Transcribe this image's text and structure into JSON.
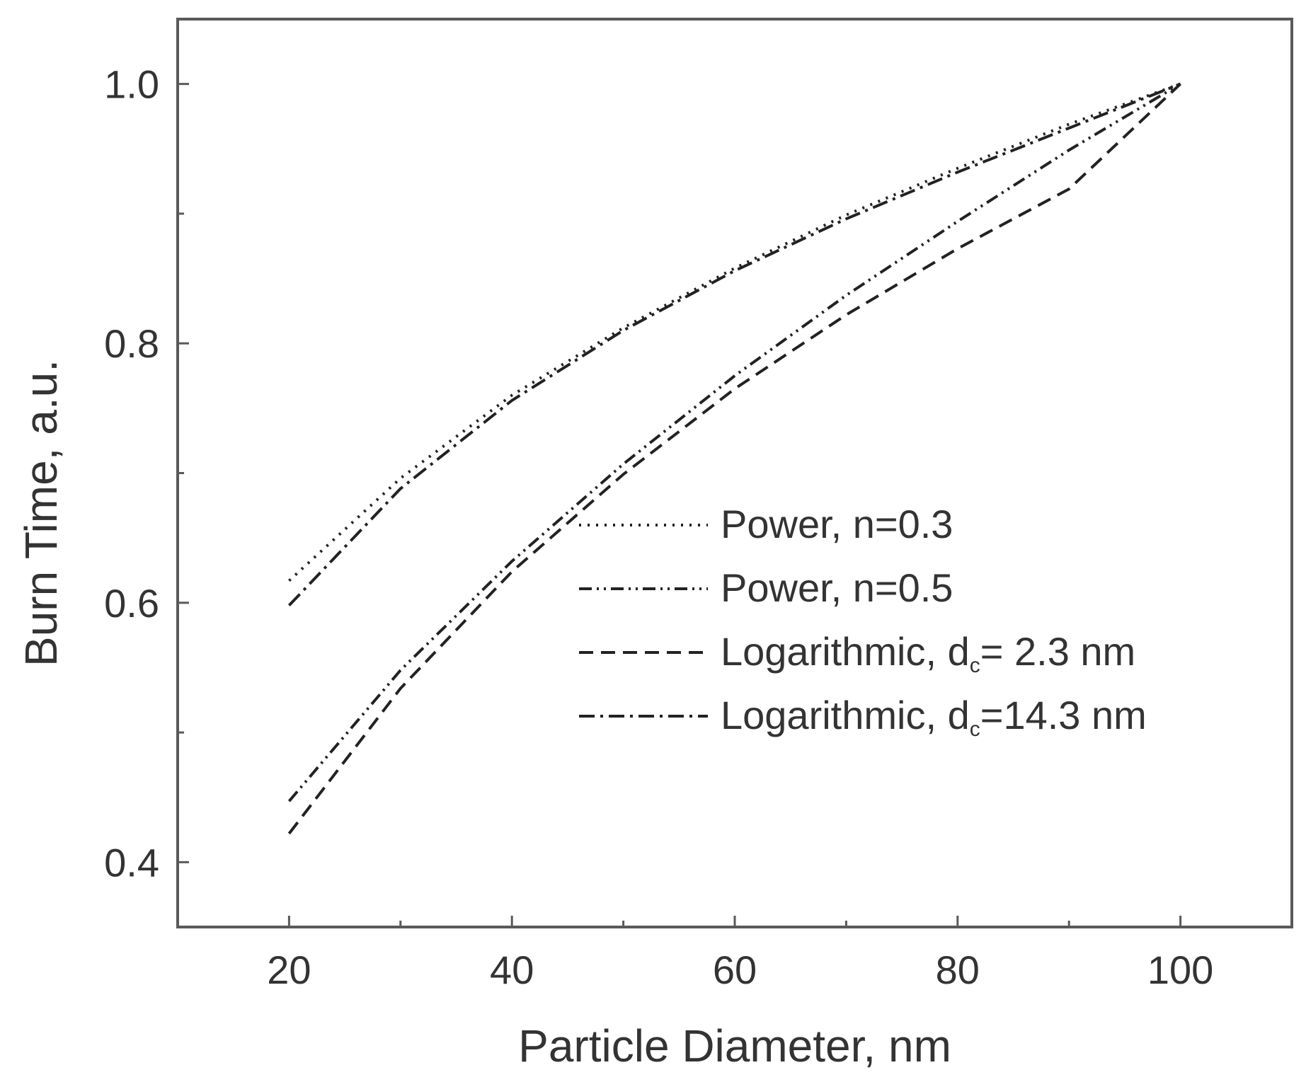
{
  "chart_data": {
    "type": "line",
    "title": "",
    "xlabel": "Particle Diameter, nm",
    "ylabel": "Burn Time, a.u.",
    "xlim": [
      10,
      110
    ],
    "ylim": [
      0.35,
      1.05
    ],
    "xticks": [
      20,
      40,
      60,
      80,
      100
    ],
    "xtick_labels": [
      "20",
      "40",
      "60",
      "80",
      "100"
    ],
    "x_minor_ticks": [
      30,
      50,
      70,
      90
    ],
    "yticks": [
      0.4,
      0.6,
      0.8,
      1.0
    ],
    "ytick_labels": [
      "0.4",
      "0.6",
      "0.8",
      "1.0"
    ],
    "y_minor_ticks": [
      0.5,
      0.7,
      0.9
    ],
    "grid": false,
    "legend_position": "center-right",
    "series": [
      {
        "name": "Power, n=0.3",
        "dash": "dotted",
        "x": [
          20,
          30,
          40,
          50,
          60,
          70,
          80,
          90,
          100
        ],
        "y": [
          0.617,
          0.696,
          0.76,
          0.812,
          0.858,
          0.899,
          0.935,
          0.969,
          1.0
        ]
      },
      {
        "name": "Power, n=0.5",
        "dash": "dash-dot-dot",
        "x": [
          20,
          30,
          40,
          50,
          60,
          70,
          80,
          90,
          100
        ],
        "y": [
          0.447,
          0.548,
          0.632,
          0.707,
          0.775,
          0.837,
          0.894,
          0.949,
          1.0
        ]
      },
      {
        "name_prefix": "Logarithmic, d",
        "name_subscript": "c",
        "name_suffix": "=  2.3 nm",
        "dash": "dashed",
        "x": [
          20,
          30,
          40,
          50,
          60,
          70,
          80,
          90,
          100
        ],
        "y": [
          0.422,
          0.534,
          0.624,
          0.699,
          0.765,
          0.822,
          0.873,
          0.919,
          1.0
        ]
      },
      {
        "name_prefix": "Logarithmic, d",
        "name_subscript": "c",
        "name_suffix": "=14.3 nm",
        "dash": "dash-dot",
        "x": [
          20,
          30,
          40,
          50,
          60,
          70,
          80,
          90,
          100
        ],
        "y": [
          0.598,
          0.688,
          0.756,
          0.81,
          0.856,
          0.896,
          0.932,
          0.966,
          1.0
        ]
      }
    ]
  }
}
